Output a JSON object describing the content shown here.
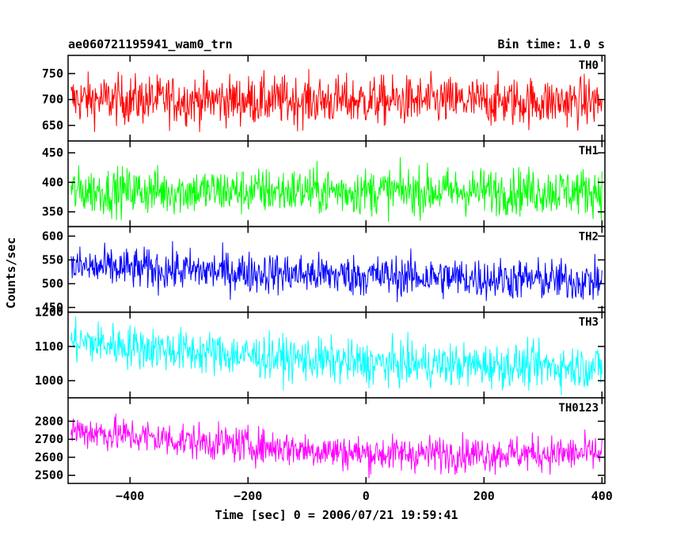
{
  "chart_data": {
    "type": "line",
    "title": "ae060721195941_wam0_trn",
    "subtitle": "Bin time: 1.0 s",
    "xlabel": "Time [sec] 0 = 2006/07/21 19:59:41",
    "ylabel": "Counts/sec",
    "xlim": [
      -505,
      405
    ],
    "x_data_range": [
      -500,
      400
    ],
    "x_bin": 1.0,
    "x_ticks": [
      -400,
      -200,
      0,
      200,
      400
    ],
    "x_tick_labels": [
      "−400",
      "−200",
      "0",
      "200",
      "400"
    ],
    "grid": false,
    "panels": [
      {
        "name": "TH0",
        "color": "#ff0000",
        "ylim": [
          620,
          785
        ],
        "y_ticks": [
          650,
          700,
          750
        ],
        "trend": [
          {
            "x": -500,
            "y": 700
          },
          {
            "x": 400,
            "y": 695
          }
        ],
        "noise": 24
      },
      {
        "name": "TH1",
        "color": "#00ff00",
        "ylim": [
          325,
          470
        ],
        "y_ticks": [
          350,
          400,
          450
        ],
        "trend": [
          {
            "x": -500,
            "y": 385
          },
          {
            "x": 400,
            "y": 385
          }
        ],
        "noise": 20
      },
      {
        "name": "TH2",
        "color": "#0000ff",
        "ylim": [
          440,
          620
        ],
        "y_ticks": [
          450,
          500,
          550,
          600
        ],
        "trend": [
          {
            "x": -500,
            "y": 535
          },
          {
            "x": -100,
            "y": 520
          },
          {
            "x": 400,
            "y": 505
          }
        ],
        "noise": 22
      },
      {
        "name": "TH3",
        "color": "#00ffff",
        "ylim": [
          950,
          1200
        ],
        "y_ticks": [
          1000,
          1100,
          1200
        ],
        "trend": [
          {
            "x": -500,
            "y": 1115
          },
          {
            "x": -300,
            "y": 1085
          },
          {
            "x": 0,
            "y": 1050
          },
          {
            "x": 400,
            "y": 1040
          }
        ],
        "noise": 32
      },
      {
        "name": "TH0123",
        "color": "#ff00ff",
        "ylim": [
          2455,
          2930
        ],
        "y_ticks": [
          2500,
          2600,
          2700,
          2800
        ],
        "trend": [
          {
            "x": -500,
            "y": 2750
          },
          {
            "x": -300,
            "y": 2690
          },
          {
            "x": 0,
            "y": 2620
          },
          {
            "x": 400,
            "y": 2620
          }
        ],
        "noise": 50
      }
    ]
  }
}
